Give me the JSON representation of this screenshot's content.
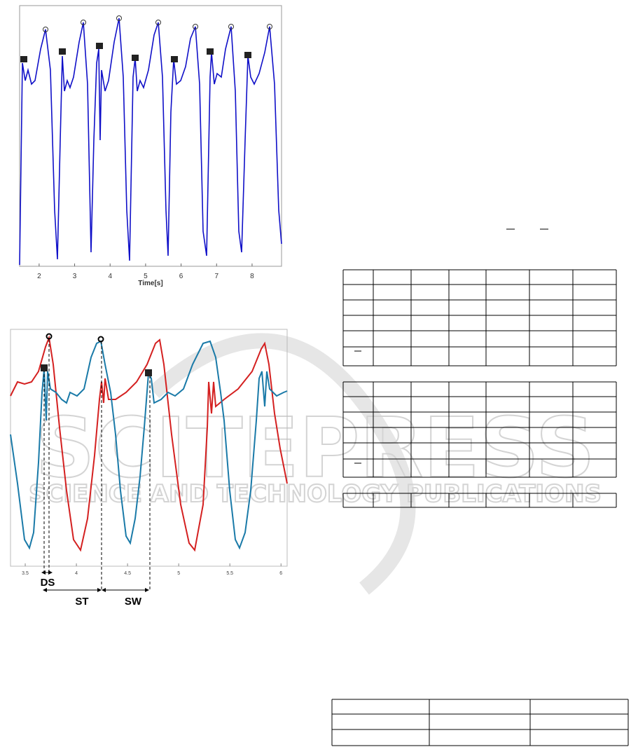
{
  "figure1": {
    "xticks": [
      2,
      3,
      4,
      5,
      6,
      7,
      8
    ],
    "xlim": [
      1.45,
      8.83
    ],
    "xlabel": "Time[s]"
  },
  "figure2": {
    "xticks": [
      3.5,
      4,
      4.5,
      5,
      5.5,
      6
    ],
    "xlim": [
      3.356,
      6.06
    ],
    "annotations": [
      "DS",
      "ST",
      "SW"
    ]
  },
  "watermark": {
    "title": "SCITEPRESS",
    "subtitle": "SCIENCE AND TECHNOLOGY PUBLICATIONS"
  }
}
